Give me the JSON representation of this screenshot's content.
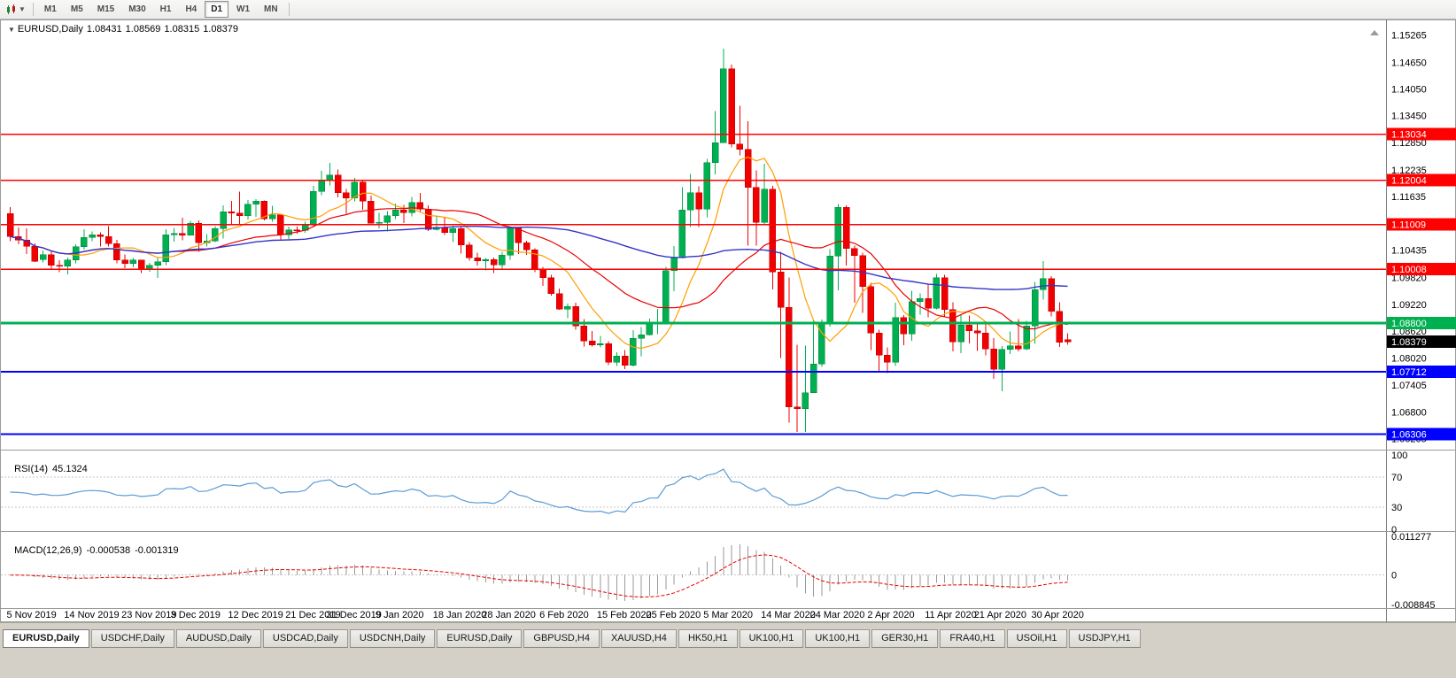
{
  "toolbar": {
    "chart_menu_tooltip": "Charts",
    "timeframes": [
      {
        "label": "M1",
        "active": false
      },
      {
        "label": "M5",
        "active": false
      },
      {
        "label": "M15",
        "active": false
      },
      {
        "label": "M30",
        "active": false
      },
      {
        "label": "H1",
        "active": false
      },
      {
        "label": "H4",
        "active": false
      },
      {
        "label": "D1",
        "active": true
      },
      {
        "label": "W1",
        "active": false
      },
      {
        "label": "MN",
        "active": false
      }
    ]
  },
  "chart_window": {
    "title_symbol": "EURUSD,Daily",
    "ohlc": {
      "open": "1.08431",
      "high": "1.08569",
      "low": "1.08315",
      "close": "1.08379"
    }
  },
  "chart_data": {
    "type": "candlestick",
    "symbol": "EURUSD",
    "timeframe": "Daily",
    "colors": {
      "bull": "#00b050",
      "bull_border": "#00813a",
      "bear": "#f00000",
      "bear_border": "#bd0000",
      "background": "#ffffff",
      "separator": "#9a9a9a",
      "axis_text": "#000000"
    },
    "price_axis": {
      "labels": [
        "1.15265",
        "1.14650",
        "1.14050",
        "1.13450",
        "1.12850",
        "1.12235",
        "1.11635",
        "1.11035",
        "1.10435",
        "1.09820",
        "1.09220",
        "1.08620",
        "1.08020",
        "1.07405",
        "1.06800",
        "1.06205"
      ],
      "range_max": 1.1545,
      "range_min": 1.06
    },
    "x_axis": {
      "labels": [
        {
          "text": "5 Nov 2019",
          "index": 0
        },
        {
          "text": "14 Nov 2019",
          "index": 7
        },
        {
          "text": "23 Nov 2019",
          "index": 14
        },
        {
          "text": "3 Dec 2019",
          "index": 20
        },
        {
          "text": "12 Dec 2019",
          "index": 27
        },
        {
          "text": "21 Dec 2019",
          "index": 34
        },
        {
          "text": "31 Dec 2019",
          "index": 39
        },
        {
          "text": "9 Jan 2020",
          "index": 45
        },
        {
          "text": "18 Jan 2020",
          "index": 52
        },
        {
          "text": "28 Jan 2020",
          "index": 58
        },
        {
          "text": "6 Feb 2020",
          "index": 65
        },
        {
          "text": "15 Feb 2020",
          "index": 72
        },
        {
          "text": "25 Feb 2020",
          "index": 78
        },
        {
          "text": "5 Mar 2020",
          "index": 85
        },
        {
          "text": "14 Mar 2020",
          "index": 92
        },
        {
          "text": "24 Mar 2020",
          "index": 98
        },
        {
          "text": "2 Apr 2020",
          "index": 105
        },
        {
          "text": "11 Apr 2020",
          "index": 112
        },
        {
          "text": "21 Apr 2020",
          "index": 118
        },
        {
          "text": "30 Apr 2020",
          "index": 125
        }
      ]
    },
    "candles": {
      "dates": [
        "2019-11-05",
        "2019-11-06",
        "2019-11-07",
        "2019-11-08",
        "2019-11-11",
        "2019-11-12",
        "2019-11-13",
        "2019-11-14",
        "2019-11-15",
        "2019-11-18",
        "2019-11-19",
        "2019-11-20",
        "2019-11-21",
        "2019-11-22",
        "2019-11-25",
        "2019-11-26",
        "2019-11-27",
        "2019-11-28",
        "2019-11-29",
        "2019-12-02",
        "2019-12-03",
        "2019-12-04",
        "2019-12-05",
        "2019-12-06",
        "2019-12-09",
        "2019-12-10",
        "2019-12-11",
        "2019-12-12",
        "2019-12-13",
        "2019-12-16",
        "2019-12-17",
        "2019-12-18",
        "2019-12-19",
        "2019-12-20",
        "2019-12-23",
        "2019-12-24",
        "2019-12-26",
        "2019-12-27",
        "2019-12-30",
        "2019-12-31",
        "2020-01-02",
        "2020-01-03",
        "2020-01-06",
        "2020-01-07",
        "2020-01-08",
        "2020-01-09",
        "2020-01-10",
        "2020-01-13",
        "2020-01-14",
        "2020-01-15",
        "2020-01-16",
        "2020-01-17",
        "2020-01-20",
        "2020-01-21",
        "2020-01-22",
        "2020-01-23",
        "2020-01-24",
        "2020-01-27",
        "2020-01-28",
        "2020-01-29",
        "2020-01-30",
        "2020-01-31",
        "2020-02-03",
        "2020-02-04",
        "2020-02-05",
        "2020-02-06",
        "2020-02-07",
        "2020-02-10",
        "2020-02-11",
        "2020-02-12",
        "2020-02-13",
        "2020-02-14",
        "2020-02-17",
        "2020-02-18",
        "2020-02-19",
        "2020-02-20",
        "2020-02-21",
        "2020-02-24",
        "2020-02-25",
        "2020-02-26",
        "2020-02-27",
        "2020-02-28",
        "2020-03-02",
        "2020-03-03",
        "2020-03-04",
        "2020-03-05",
        "2020-03-06",
        "2020-03-09",
        "2020-03-10",
        "2020-03-11",
        "2020-03-12",
        "2020-03-13",
        "2020-03-16",
        "2020-03-17",
        "2020-03-18",
        "2020-03-19",
        "2020-03-20",
        "2020-03-23",
        "2020-03-24",
        "2020-03-25",
        "2020-03-26",
        "2020-03-27",
        "2020-03-30",
        "2020-03-31",
        "2020-04-01",
        "2020-04-02",
        "2020-04-03",
        "2020-04-06",
        "2020-04-07",
        "2020-04-08",
        "2020-04-09",
        "2020-04-10",
        "2020-04-13",
        "2020-04-14",
        "2020-04-15",
        "2020-04-16",
        "2020-04-17",
        "2020-04-20",
        "2020-04-21",
        "2020-04-22",
        "2020-04-23",
        "2020-04-24",
        "2020-04-27",
        "2020-04-28",
        "2020-04-29",
        "2020-04-30",
        "2020-05-01",
        "2020-05-04",
        "2020-05-05",
        "2020-05-06"
      ],
      "open": [
        1.1126,
        1.1074,
        1.1066,
        1.1052,
        1.1022,
        1.1033,
        1.1009,
        1.1007,
        1.1021,
        1.1051,
        1.1072,
        1.1078,
        1.1074,
        1.1058,
        1.1021,
        1.1013,
        1.1021,
        1.1001,
        1.1009,
        1.1017,
        1.1078,
        1.1081,
        1.1077,
        1.1104,
        1.106,
        1.1064,
        1.1092,
        1.113,
        1.1127,
        1.1121,
        1.1146,
        1.1153,
        1.1114,
        1.1123,
        1.1078,
        1.1089,
        1.1088,
        1.11,
        1.1175,
        1.1199,
        1.1212,
        1.1172,
        1.116,
        1.1196,
        1.1153,
        1.1104,
        1.1106,
        1.1121,
        1.1134,
        1.1128,
        1.115,
        1.1136,
        1.109,
        1.1095,
        1.1083,
        1.1092,
        1.1055,
        1.1026,
        1.1019,
        1.1022,
        1.101,
        1.1032,
        1.1093,
        1.106,
        1.1044,
        1.1,
        1.0982,
        1.0946,
        1.0911,
        1.0917,
        1.0873,
        1.084,
        1.0831,
        1.0834,
        1.0792,
        1.0806,
        1.0785,
        1.0846,
        1.0854,
        1.088,
        1.0881,
        1.0998,
        1.1026,
        1.1134,
        1.1172,
        1.1136,
        1.124,
        1.1284,
        1.145,
        1.1281,
        1.127,
        1.1184,
        1.1106,
        1.118,
        1.0995,
        1.0915,
        1.0692,
        1.0688,
        1.0724,
        1.0788,
        1.0882,
        1.103,
        1.114,
        1.1047,
        1.1031,
        1.0962,
        1.0858,
        1.0808,
        1.0792,
        1.0892,
        1.0856,
        1.0928,
        1.0935,
        1.0913,
        1.0982,
        1.091,
        1.0838,
        1.0875,
        1.0863,
        1.0858,
        1.0822,
        1.0776,
        1.0821,
        1.0829,
        1.0822,
        1.0873,
        1.0955,
        1.098,
        1.0906,
        1.08431
      ],
      "high": [
        1.114,
        1.1094,
        1.1092,
        1.1059,
        1.1043,
        1.1043,
        1.1021,
        1.1027,
        1.1057,
        1.109,
        1.1085,
        1.1083,
        1.1097,
        1.1067,
        1.1034,
        1.1026,
        1.1022,
        1.1015,
        1.1028,
        1.109,
        1.1093,
        1.1116,
        1.1109,
        1.111,
        1.1079,
        1.1097,
        1.1144,
        1.1154,
        1.1175,
        1.1156,
        1.1158,
        1.1155,
        1.1143,
        1.1124,
        1.1096,
        1.1096,
        1.1107,
        1.1188,
        1.1221,
        1.1239,
        1.1224,
        1.1181,
        1.1206,
        1.1199,
        1.1166,
        1.1127,
        1.1131,
        1.1148,
        1.1145,
        1.1163,
        1.1172,
        1.1144,
        1.1119,
        1.1118,
        1.1098,
        1.1096,
        1.1062,
        1.1038,
        1.1026,
        1.1027,
        1.1039,
        1.1096,
        1.1095,
        1.1065,
        1.1048,
        1.1006,
        1.0988,
        1.0957,
        1.0924,
        1.0926,
        1.0889,
        1.0862,
        1.0851,
        1.0839,
        1.0814,
        1.0819,
        1.0864,
        1.0871,
        1.089,
        1.0912,
        1.1006,
        1.1053,
        1.1185,
        1.1214,
        1.1187,
        1.1248,
        1.1355,
        1.1495,
        1.146,
        1.1367,
        1.1333,
        1.1222,
        1.1237,
        1.1188,
        1.104,
        1.0982,
        1.0831,
        1.0829,
        1.0888,
        1.0888,
        1.1046,
        1.1147,
        1.1144,
        1.1054,
        1.1038,
        1.097,
        1.0865,
        1.0825,
        1.0926,
        1.0898,
        1.0952,
        1.0946,
        1.0967,
        1.099,
        1.0988,
        1.0927,
        1.0898,
        1.0897,
        1.088,
        1.0884,
        1.0846,
        1.0828,
        1.0861,
        1.0889,
        1.0885,
        1.0972,
        1.1019,
        1.0985,
        1.0927,
        1.08569
      ],
      "low": [
        1.1064,
        1.1057,
        1.1035,
        1.1017,
        1.1016,
        1.1002,
        1.0994,
        1.0989,
        1.1014,
        1.1045,
        1.1064,
        1.1052,
        1.1052,
        1.1014,
        1.1003,
        1.1005,
        1.0992,
        1.0995,
        1.0981,
        1.101,
        1.1063,
        1.1066,
        1.1077,
        1.104,
        1.1052,
        1.1062,
        1.107,
        1.1102,
        1.11,
        1.1112,
        1.1118,
        1.111,
        1.1107,
        1.1066,
        1.1069,
        1.108,
        1.1082,
        1.1096,
        1.1167,
        1.1189,
        1.1162,
        1.1125,
        1.1153,
        1.1134,
        1.1103,
        1.1092,
        1.1085,
        1.1113,
        1.1104,
        1.1119,
        1.1128,
        1.1086,
        1.1087,
        1.1077,
        1.1062,
        1.1036,
        1.102,
        1.1009,
        1.0998,
        1.0992,
        1.1002,
        1.1022,
        1.1035,
        1.1033,
        1.0994,
        1.0963,
        1.0941,
        1.091,
        1.0891,
        1.0865,
        1.0827,
        1.0827,
        1.0825,
        1.0786,
        1.0784,
        1.0777,
        1.0783,
        1.0805,
        1.0852,
        1.0855,
        1.0878,
        1.0951,
        1.1025,
        1.1095,
        1.1095,
        1.1117,
        1.1213,
        1.1284,
        1.1274,
        1.1256,
        1.1054,
        1.1054,
        1.1099,
        1.0955,
        1.0802,
        1.0657,
        1.0636,
        1.0636,
        1.0723,
        1.0782,
        1.0872,
        1.0953,
        1.1009,
        1.0926,
        1.0903,
        1.0819,
        1.0773,
        1.0768,
        1.0784,
        1.083,
        1.084,
        1.0899,
        1.0893,
        1.0911,
        1.0894,
        1.0816,
        1.0812,
        1.0834,
        1.0817,
        1.0807,
        1.0755,
        1.0727,
        1.081,
        1.0816,
        1.0819,
        1.0833,
        1.0933,
        1.0895,
        1.0826,
        1.08315
      ],
      "close": [
        1.1074,
        1.1066,
        1.1052,
        1.1018,
        1.1033,
        1.1009,
        1.1007,
        1.1021,
        1.1051,
        1.1072,
        1.1078,
        1.1074,
        1.1058,
        1.1021,
        1.1013,
        1.1021,
        1.1001,
        1.1009,
        1.1017,
        1.1078,
        1.1081,
        1.1077,
        1.1104,
        1.106,
        1.1064,
        1.1092,
        1.113,
        1.1127,
        1.1121,
        1.1146,
        1.1153,
        1.1114,
        1.1123,
        1.1078,
        1.1089,
        1.1088,
        1.11,
        1.1175,
        1.1199,
        1.1212,
        1.1172,
        1.116,
        1.1196,
        1.1153,
        1.1104,
        1.1106,
        1.1121,
        1.1134,
        1.1128,
        1.115,
        1.1136,
        1.109,
        1.1095,
        1.1083,
        1.1092,
        1.1055,
        1.1026,
        1.1019,
        1.1022,
        1.101,
        1.1032,
        1.1093,
        1.106,
        1.1044,
        1.1,
        1.0982,
        1.0946,
        1.0911,
        1.0917,
        1.0873,
        1.084,
        1.0831,
        1.0834,
        1.0792,
        1.0806,
        1.0785,
        1.0846,
        1.0854,
        1.088,
        1.0881,
        1.0998,
        1.1026,
        1.1134,
        1.1172,
        1.1136,
        1.124,
        1.1284,
        1.145,
        1.1281,
        1.127,
        1.1184,
        1.1106,
        1.118,
        1.0995,
        1.0915,
        1.0692,
        1.0688,
        1.0724,
        1.0788,
        1.0882,
        1.103,
        1.114,
        1.1047,
        1.1031,
        1.0962,
        1.0858,
        1.0808,
        1.0792,
        1.0892,
        1.0856,
        1.0928,
        1.0935,
        1.0913,
        1.0982,
        1.091,
        1.0838,
        1.0875,
        1.0863,
        1.0858,
        1.0822,
        1.0776,
        1.0821,
        1.0829,
        1.0822,
        1.0873,
        1.0955,
        1.098,
        1.0906,
        1.0837,
        1.08379
      ]
    },
    "current_bar": {
      "open": 1.08431,
      "high": 1.08569,
      "low": 1.08315,
      "close": 1.08379
    },
    "horizontal_lines": [
      {
        "price": 1.13034,
        "label": "1.13034",
        "color": "#ff0000",
        "width": 1.4
      },
      {
        "price": 1.12004,
        "label": "1.12004",
        "color": "#ff0000",
        "width": 1.4
      },
      {
        "price": 1.11009,
        "label": "1.11009",
        "color": "#ff0000",
        "width": 1.4
      },
      {
        "price": 1.10008,
        "label": "1.10008",
        "color": "#ff0000",
        "width": 1.4
      },
      {
        "price": 1.088,
        "label": "1.08800",
        "color": "#00b050",
        "width": 2.6
      },
      {
        "price": 1.07712,
        "label": "1.07712",
        "color": "#0000ff",
        "width": 2
      },
      {
        "price": 1.06306,
        "label": "1.06306",
        "color": "#0000ff",
        "width": 2
      }
    ],
    "current_price": {
      "value": 1.08379,
      "label": "1.08379",
      "label_bg": "#000000",
      "label_color": "#ffffff"
    },
    "moving_averages": [
      {
        "name": "ma-fast",
        "period": 8,
        "color": "#ff9d00",
        "width": 1.2
      },
      {
        "name": "ma-mid",
        "period": 21,
        "color": "#e80000",
        "width": 1.2
      },
      {
        "name": "ma-slow",
        "period": 50,
        "color": "#3434c8",
        "width": 1.4
      }
    ],
    "indicators": {
      "rsi": {
        "name": "RSI(14)",
        "value": "45.1324",
        "period": 14,
        "color": "#5b9bd5",
        "axis_labels": [
          "100",
          "70",
          "30",
          "0"
        ],
        "level_lines": [
          70,
          30
        ]
      },
      "macd": {
        "name": "MACD(12,26,9)",
        "macd_value": "-0.000538",
        "signal_value": "-0.001319",
        "fast": 12,
        "slow": 26,
        "signal": 9,
        "axis_labels": [
          "0.011277",
          "0",
          "-0.008845"
        ],
        "histogram_color": "#9a9a9a",
        "signal_color": "#e80000"
      }
    }
  },
  "tabs": [
    {
      "label": "EURUSD,Daily",
      "active": true
    },
    {
      "label": "USDCHF,Daily",
      "active": false
    },
    {
      "label": "AUDUSD,Daily",
      "active": false
    },
    {
      "label": "USDCAD,Daily",
      "active": false
    },
    {
      "label": "USDCNH,Daily",
      "active": false
    },
    {
      "label": "EURUSD,Daily",
      "active": false
    },
    {
      "label": "GBPUSD,H4",
      "active": false
    },
    {
      "label": "XAUUSD,H4",
      "active": false
    },
    {
      "label": "HK50,H1",
      "active": false
    },
    {
      "label": "UK100,H1",
      "active": false
    },
    {
      "label": "UK100,H1",
      "active": false
    },
    {
      "label": "GER30,H1",
      "active": false
    },
    {
      "label": "FRA40,H1",
      "active": false
    },
    {
      "label": "USOil,H1",
      "active": false
    },
    {
      "label": "USDJPY,H1",
      "active": false
    }
  ]
}
